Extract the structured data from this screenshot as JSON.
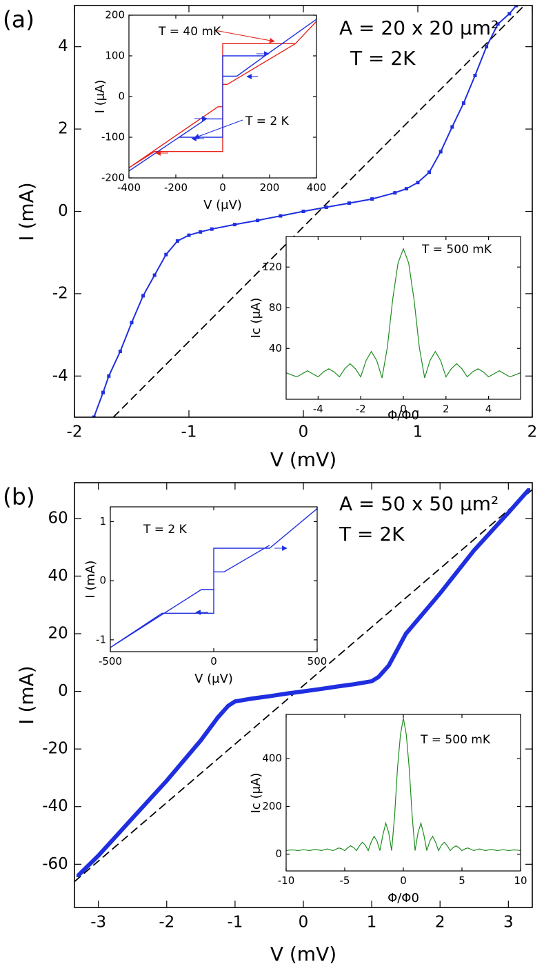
{
  "chart_data": [
    {
      "type": "line",
      "panel_label": "(a)",
      "x_label": "V (mV)",
      "y_label": "I (mA)",
      "xlim": [
        -2,
        2
      ],
      "ylim": [
        -5,
        5
      ],
      "xticks": [
        -2,
        -1,
        0,
        1,
        2
      ],
      "yticks": [
        -4,
        -2,
        0,
        2,
        4
      ],
      "annotations": [
        {
          "text": "A = 20 x 20 μm²",
          "color": "#000000"
        },
        {
          "text": "T = 2K",
          "color": "#1f2fe0"
        }
      ],
      "series": [
        {
          "style": "dashed",
          "color": "#000000",
          "x": [
            -1.66,
            1.93
          ],
          "values": [
            -5,
            5
          ]
        },
        {
          "style": "squares",
          "color": "#1f2fe0",
          "x": [
            -1.83,
            -1.75,
            -1.7,
            -1.6,
            -1.5,
            -1.4,
            -1.3,
            -1.2,
            -1.1,
            -1.0,
            -0.9,
            -0.8,
            -0.6,
            -0.4,
            -0.2,
            0,
            0.2,
            0.4,
            0.6,
            0.8,
            0.9,
            1.0,
            1.1,
            1.2,
            1.3,
            1.4,
            1.5,
            1.6,
            1.7,
            1.8,
            1.86
          ],
          "values": [
            -5,
            -4.4,
            -4.0,
            -3.4,
            -2.7,
            -2.05,
            -1.55,
            -1.05,
            -0.72,
            -0.58,
            -0.5,
            -0.43,
            -0.32,
            -0.22,
            -0.11,
            0,
            0.1,
            0.2,
            0.3,
            0.45,
            0.55,
            0.7,
            0.95,
            1.45,
            2.05,
            2.63,
            3.3,
            4.0,
            4.55,
            4.8,
            5
          ]
        }
      ]
    },
    {
      "type": "line",
      "x_label": "V (μV)",
      "y_label": "I (μA)",
      "xlim": [
        -400,
        400
      ],
      "ylim": [
        -200,
        200
      ],
      "xticks": [
        -400,
        -200,
        0,
        200,
        400
      ],
      "yticks": [
        -200,
        -100,
        0,
        100,
        200
      ],
      "annotations": [
        {
          "text": "T = 40 mK",
          "color": "#e8221a"
        },
        {
          "text": "T = 2 K",
          "color": "#1f2fe0"
        }
      ],
      "series": [
        {
          "style": "solid",
          "color": "#e8221a",
          "x": [
            -400,
            -20,
            0,
            0,
            310,
            400,
            null,
            310,
            20,
            0,
            0,
            -290,
            -400
          ],
          "values": [
            -175,
            -25,
            -25,
            130,
            130,
            185,
            null,
            130,
            30,
            30,
            -135,
            -135,
            -175
          ]
        },
        {
          "style": "solid",
          "color": "#1f2fe0",
          "x": [
            -400,
            -70,
            0,
            0,
            180,
            400,
            null,
            0,
            60,
            180,
            null,
            0,
            0,
            -186
          ],
          "values": [
            -183,
            -55,
            -55,
            100,
            100,
            190,
            null,
            50,
            50,
            100,
            null,
            -55,
            -100,
            -100
          ]
        }
      ]
    },
    {
      "type": "line",
      "x_label": "Φ/Φ0",
      "y_label": "Ic (μA)",
      "xlim": [
        -5.5,
        5.5
      ],
      "ylim": [
        -10,
        150
      ],
      "xticks": [
        -4,
        -2,
        0,
        2,
        4
      ],
      "yticks": [
        40,
        80,
        120
      ],
      "annotations": [
        {
          "text": "T = 500 mK",
          "color": "#1e8c1e"
        }
      ],
      "series": [
        {
          "style": "solid",
          "color": "#1e8c1e",
          "x": [
            -5.5,
            -5.25,
            -5,
            -4.75,
            -4.5,
            -4.25,
            -4,
            -3.75,
            -3.5,
            -3.25,
            -3,
            -2.75,
            -2.5,
            -2.25,
            -2,
            -1.75,
            -1.5,
            -1.25,
            -1,
            -0.75,
            -0.5,
            -0.25,
            0,
            0.25,
            0.5,
            0.75,
            1,
            1.25,
            1.5,
            1.75,
            2,
            2.25,
            2.5,
            2.75,
            3,
            3.25,
            3.5,
            3.75,
            4,
            4.25,
            4.5,
            4.75,
            5,
            5.25,
            5.5
          ],
          "values": [
            16,
            14,
            12,
            15,
            18,
            15,
            12,
            17,
            20,
            17,
            12,
            20,
            25,
            20,
            12,
            28,
            37,
            28,
            11,
            41,
            88,
            124,
            138,
            124,
            88,
            41,
            11,
            28,
            37,
            28,
            12,
            20,
            25,
            20,
            12,
            17,
            20,
            17,
            12,
            15,
            18,
            15,
            12,
            14,
            16
          ]
        }
      ]
    },
    {
      "type": "line",
      "panel_label": "(b)",
      "x_label": "V (mV)",
      "y_label": "I (mA)",
      "xlim": [
        -3.35,
        3.35
      ],
      "ylim": [
        -75,
        72.4
      ],
      "xticks": [
        -3,
        -2,
        -1,
        0,
        1,
        2,
        3
      ],
      "yticks": [
        -60,
        -40,
        -20,
        0,
        20,
        40,
        60
      ],
      "annotations": [
        {
          "text": "A = 50 x 50 μm²",
          "color": "#000000"
        },
        {
          "text": "T = 2K",
          "color": "#1f2fe0"
        }
      ],
      "series": [
        {
          "style": "dashed",
          "color": "#000000",
          "x": [
            -3.35,
            3.35
          ],
          "values": [
            -66,
            70
          ]
        },
        {
          "style": "thick",
          "color": "#1f2fe0",
          "x": [
            -3.3,
            -3,
            -2.5,
            -2,
            -1.5,
            -1.25,
            -1.1,
            -1,
            -0.75,
            -0.5,
            -0.25,
            0,
            0.25,
            0.5,
            0.75,
            1,
            1.1,
            1.25,
            1.5,
            2,
            2.5,
            3,
            3.3
          ],
          "values": [
            -64,
            -57,
            -44,
            -31,
            -17,
            -9,
            -5,
            -3.5,
            -2.5,
            -1.7,
            -0.8,
            0,
            0.8,
            1.7,
            2.5,
            3.5,
            5,
            9,
            20,
            34,
            49,
            62,
            70
          ]
        }
      ]
    },
    {
      "type": "line",
      "x_label": "V (μV)",
      "y_label": "I (mA)",
      "xlim": [
        -500,
        500
      ],
      "ylim": [
        -1.2,
        1.25
      ],
      "xticks": [
        -500,
        0,
        500
      ],
      "yticks": [
        -1,
        0,
        1
      ],
      "annotations": [
        {
          "text": "T = 2 K",
          "color": "#1f2fe0"
        }
      ],
      "series": [
        {
          "style": "solid",
          "color": "#1f2fe0",
          "x": [
            -500,
            -60,
            0,
            0,
            270,
            500,
            null,
            270,
            50,
            0,
            0,
            -250,
            -500
          ],
          "values": [
            -1.13,
            -0.15,
            -0.15,
            0.55,
            0.55,
            1.22,
            null,
            0.6,
            0.15,
            0.15,
            -0.55,
            -0.55,
            -1.13
          ]
        }
      ]
    },
    {
      "type": "line",
      "x_label": "Φ/Φ0",
      "y_label": "Ic (μA)",
      "xlim": [
        -10,
        10
      ],
      "ylim": [
        -70,
        585
      ],
      "xticks": [
        -10,
        -5,
        0,
        5,
        10
      ],
      "yticks": [
        0,
        200,
        400
      ],
      "annotations": [
        {
          "text": "T = 500 mK",
          "color": "#1e8c1e"
        }
      ],
      "series": [
        {
          "style": "solid",
          "color": "#1e8c1e",
          "x": [
            -10,
            -9.75,
            -9.5,
            -9.25,
            -9,
            -8.75,
            -8.5,
            -8.25,
            -8,
            -7.75,
            -7.5,
            -7.25,
            -7,
            -6.75,
            -6.5,
            -6.25,
            -6,
            -5.75,
            -5.5,
            -5.25,
            -5,
            -4.75,
            -4.5,
            -4.25,
            -4,
            -3.75,
            -3.5,
            -3.25,
            -3,
            -2.75,
            -2.5,
            -2.25,
            -2,
            -1.75,
            -1.5,
            -1.25,
            -1,
            -0.75,
            -0.5,
            -0.25,
            0,
            0.25,
            0.5,
            0.75,
            1,
            1.25,
            1.5,
            1.75,
            2,
            2.25,
            2.5,
            2.75,
            3,
            3.25,
            3.5,
            3.75,
            4,
            4.25,
            4.5,
            4.75,
            5,
            5.25,
            5.5,
            5.75,
            6,
            6.25,
            6.5,
            6.75,
            7,
            7.25,
            7.5,
            7.75,
            8,
            8.25,
            8.5,
            8.75,
            9,
            9.25,
            9.5,
            9.75,
            10
          ],
          "values": [
            15,
            17,
            18,
            17,
            15,
            17,
            19,
            17,
            15,
            18,
            20,
            18,
            15,
            19,
            22,
            19,
            15,
            21,
            26,
            22,
            15,
            27,
            35,
            28,
            15,
            35,
            50,
            38,
            15,
            50,
            75,
            55,
            15,
            80,
            130,
            90,
            15,
            160,
            360,
            500,
            570,
            500,
            360,
            160,
            15,
            90,
            130,
            80,
            15,
            55,
            75,
            50,
            15,
            38,
            50,
            35,
            15,
            28,
            35,
            27,
            15,
            22,
            26,
            21,
            15,
            19,
            22,
            19,
            15,
            18,
            20,
            18,
            15,
            17,
            19,
            17,
            15,
            17,
            18,
            17,
            15
          ]
        }
      ]
    }
  ]
}
